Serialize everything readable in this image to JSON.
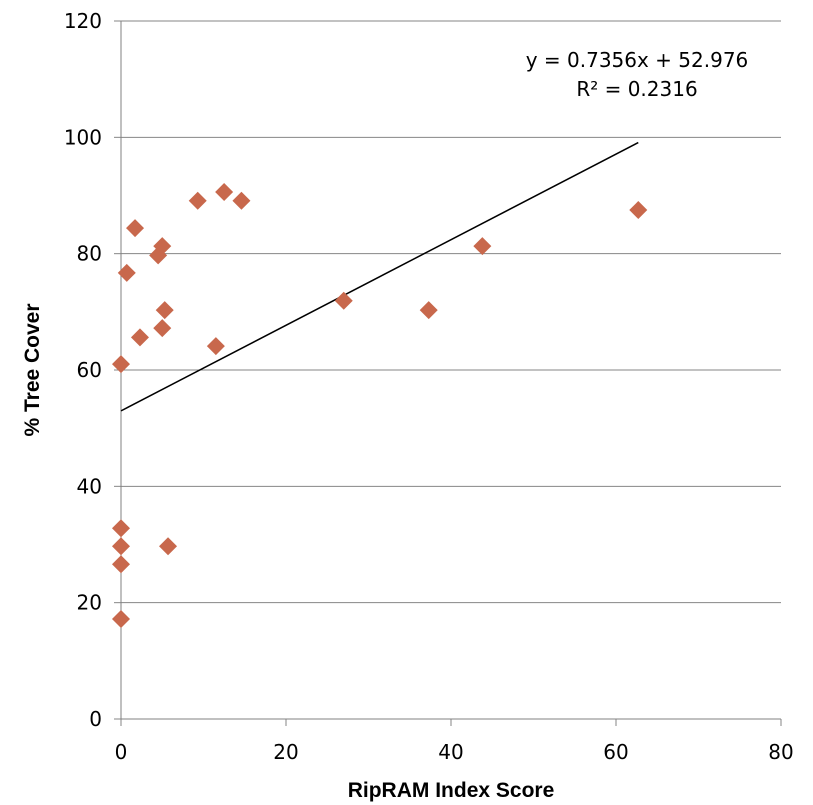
{
  "chart_data": {
    "type": "scatter",
    "xlabel": "RipRAM Index Score",
    "ylabel": "% Tree Cover",
    "xlim": [
      0,
      80
    ],
    "ylim": [
      0,
      120
    ],
    "xticks": [
      0,
      20,
      40,
      60,
      80
    ],
    "yticks": [
      0,
      20,
      40,
      60,
      80,
      100,
      120
    ],
    "grid": "horizontal",
    "marker": "diamond",
    "marker_color": "#C8684C",
    "x": [
      0,
      0.7,
      1.7,
      2.3,
      4.5,
      5,
      5,
      5.3,
      5.7,
      9.3,
      11.5,
      12.5,
      14.6,
      27,
      37.3,
      43.8,
      62.7,
      0,
      0,
      0,
      0
    ],
    "y": [
      61,
      76.7,
      84.4,
      65.6,
      79.7,
      81.3,
      67.2,
      70.3,
      29.7,
      89.1,
      64.1,
      90.6,
      89.1,
      71.9,
      70.3,
      81.3,
      87.5,
      32.8,
      29.7,
      26.6,
      17.2
    ],
    "trendline": {
      "slope": 0.7356,
      "intercept": 52.976,
      "x_range": [
        0,
        62.7
      ]
    },
    "equation_text": "y = 0.7356x + 52.976",
    "r2_text": "R² = 0.2316"
  }
}
